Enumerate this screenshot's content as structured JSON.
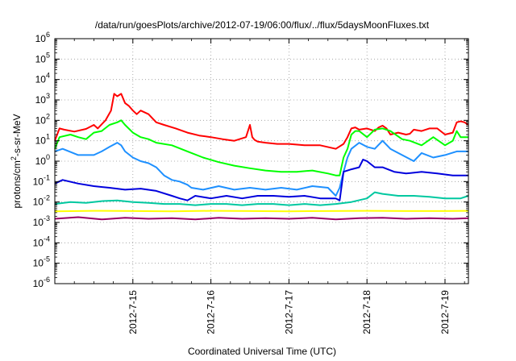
{
  "chart_data": {
    "type": "line",
    "title": "/data/run/goesPlots/archive/2012-07-19/06:00/flux/../flux/5daysMoonFluxes.txt",
    "xlabel": "Coordinated Universal Time (UTC)",
    "ylabel": {
      "base": "protons/cm",
      "sup": "2",
      "rest": "-s-sr-MeV"
    },
    "x_unit": "days since 2012-07-14 00:00 UTC",
    "xlim": [
      0.0,
      5.3
    ],
    "x_ticks": [
      {
        "value": 1,
        "label": "2012-7-15"
      },
      {
        "value": 2,
        "label": "2012-7-16"
      },
      {
        "value": 3,
        "label": "2012-7-17"
      },
      {
        "value": 4,
        "label": "2012-7-18"
      },
      {
        "value": 5,
        "label": "2012-7-19"
      }
    ],
    "y_scale": "log",
    "ylim_exp": [
      -6,
      6
    ],
    "y_tick_exponents": [
      6,
      5,
      4,
      3,
      2,
      1,
      0,
      -1,
      -2,
      -3,
      -4,
      -5,
      -6
    ],
    "grid": true,
    "series": [
      {
        "color": "#ff0000",
        "x": [
          0.0,
          0.06,
          0.12,
          0.25,
          0.4,
          0.5,
          0.55,
          0.65,
          0.72,
          0.76,
          0.8,
          0.85,
          0.9,
          0.95,
          1.0,
          1.05,
          1.1,
          1.2,
          1.3,
          1.4,
          1.55,
          1.7,
          1.85,
          2.0,
          2.15,
          2.3,
          2.45,
          2.5,
          2.53,
          2.56,
          2.6,
          2.7,
          2.85,
          3.0,
          3.2,
          3.4,
          3.6,
          3.7,
          3.75,
          3.8,
          3.85,
          3.9,
          4.0,
          4.1,
          4.15,
          4.2,
          4.25,
          4.3,
          4.4,
          4.5,
          4.55,
          4.6,
          4.7,
          4.8,
          4.9,
          5.0,
          5.1,
          5.15,
          5.2,
          5.25,
          5.3
        ],
        "y": [
          10,
          40,
          35,
          28,
          38,
          60,
          40,
          100,
          300,
          2000,
          1500,
          2000,
          700,
          500,
          300,
          200,
          300,
          200,
          80,
          60,
          40,
          25,
          18,
          15,
          12,
          10,
          15,
          60,
          15,
          11,
          9,
          8,
          7,
          7,
          6,
          6,
          4,
          7,
          15,
          40,
          45,
          35,
          40,
          30,
          45,
          55,
          40,
          20,
          25,
          20,
          22,
          35,
          30,
          40,
          40,
          20,
          25,
          80,
          90,
          80,
          60
        ]
      },
      {
        "color": "#00ff00",
        "x": [
          0.0,
          0.06,
          0.2,
          0.3,
          0.4,
          0.5,
          0.6,
          0.7,
          0.8,
          0.85,
          0.9,
          1.0,
          1.1,
          1.2,
          1.3,
          1.5,
          1.7,
          1.9,
          2.1,
          2.3,
          2.5,
          2.7,
          2.9,
          3.1,
          3.3,
          3.5,
          3.6,
          3.65,
          3.7,
          3.75,
          3.8,
          3.85,
          3.9,
          4.0,
          4.1,
          4.2,
          4.3,
          4.45,
          4.55,
          4.7,
          4.85,
          5.0,
          5.1,
          5.15,
          5.2,
          5.3
        ],
        "y": [
          4,
          15,
          20,
          15,
          12,
          25,
          30,
          60,
          80,
          100,
          60,
          25,
          15,
          12,
          8,
          6,
          3,
          1.5,
          0.9,
          0.6,
          0.45,
          0.35,
          0.3,
          0.3,
          0.35,
          0.25,
          0.2,
          0.2,
          1.5,
          4,
          20,
          30,
          30,
          15,
          35,
          40,
          30,
          12,
          10,
          6,
          15,
          6,
          10,
          30,
          15,
          15
        ]
      },
      {
        "color": "#1e90ff",
        "x": [
          0.0,
          0.1,
          0.3,
          0.5,
          0.6,
          0.7,
          0.8,
          0.85,
          0.9,
          1.0,
          1.1,
          1.2,
          1.3,
          1.4,
          1.5,
          1.6,
          1.7,
          1.75,
          1.9,
          2.1,
          2.3,
          2.5,
          2.7,
          2.9,
          3.1,
          3.3,
          3.5,
          3.6,
          3.65,
          3.7,
          3.75,
          3.8,
          3.9,
          4.0,
          4.1,
          4.2,
          4.3,
          4.45,
          4.6,
          4.7,
          4.85,
          5.0,
          5.15,
          5.3
        ],
        "y": [
          3,
          4,
          2,
          2,
          3,
          5,
          8,
          6,
          3,
          1.5,
          1,
          0.8,
          0.5,
          0.2,
          0.12,
          0.1,
          0.07,
          0.05,
          0.04,
          0.06,
          0.04,
          0.05,
          0.04,
          0.05,
          0.04,
          0.06,
          0.05,
          0.02,
          0.05,
          0.3,
          1.5,
          4,
          8,
          5,
          4,
          10,
          4,
          2,
          1,
          2.5,
          1.5,
          2,
          3,
          3
        ]
      },
      {
        "color": "#0000dd",
        "x": [
          0.0,
          0.1,
          0.3,
          0.5,
          0.7,
          0.9,
          1.1,
          1.3,
          1.5,
          1.6,
          1.7,
          1.8,
          2.0,
          2.2,
          2.4,
          2.6,
          2.8,
          3.0,
          3.2,
          3.4,
          3.6,
          3.65,
          3.7,
          3.8,
          3.9,
          3.95,
          4.0,
          4.1,
          4.2,
          4.35,
          4.5,
          4.7,
          4.9,
          5.1,
          5.3
        ],
        "y": [
          0.08,
          0.12,
          0.08,
          0.06,
          0.05,
          0.04,
          0.045,
          0.035,
          0.02,
          0.015,
          0.012,
          0.02,
          0.015,
          0.02,
          0.015,
          0.02,
          0.02,
          0.018,
          0.02,
          0.015,
          0.015,
          0.012,
          0.3,
          0.4,
          0.5,
          1.2,
          1.0,
          0.5,
          0.5,
          0.3,
          0.25,
          0.3,
          0.25,
          0.2,
          0.2
        ]
      },
      {
        "color": "#00c8a0",
        "x": [
          0.0,
          0.2,
          0.4,
          0.6,
          0.8,
          1.0,
          1.2,
          1.4,
          1.6,
          1.8,
          2.0,
          2.2,
          2.4,
          2.6,
          2.8,
          3.0,
          3.2,
          3.4,
          3.6,
          3.8,
          4.0,
          4.1,
          4.2,
          4.4,
          4.6,
          4.8,
          5.0,
          5.2,
          5.3
        ],
        "y": [
          0.008,
          0.01,
          0.009,
          0.011,
          0.012,
          0.01,
          0.009,
          0.008,
          0.008,
          0.007,
          0.008,
          0.008,
          0.007,
          0.008,
          0.008,
          0.007,
          0.008,
          0.007,
          0.008,
          0.01,
          0.015,
          0.03,
          0.025,
          0.02,
          0.02,
          0.018,
          0.015,
          0.015,
          0.02
        ]
      },
      {
        "color": "#ffff00",
        "x": [
          0.0,
          0.5,
          1.0,
          1.5,
          2.0,
          2.5,
          3.0,
          3.5,
          4.0,
          4.5,
          5.0,
          5.3
        ],
        "y": [
          0.0035,
          0.0037,
          0.0036,
          0.0035,
          0.0037,
          0.0036,
          0.0035,
          0.0036,
          0.0037,
          0.0036,
          0.0036,
          0.0037
        ]
      },
      {
        "color": "#990066",
        "x": [
          0.0,
          0.3,
          0.6,
          0.9,
          1.2,
          1.5,
          1.8,
          2.1,
          2.4,
          2.7,
          3.0,
          3.3,
          3.6,
          3.9,
          4.2,
          4.5,
          4.8,
          5.1,
          5.3
        ],
        "y": [
          0.0015,
          0.0018,
          0.0014,
          0.0017,
          0.0015,
          0.0016,
          0.0014,
          0.0017,
          0.0015,
          0.0016,
          0.0015,
          0.0017,
          0.0014,
          0.0016,
          0.0017,
          0.0015,
          0.0016,
          0.0015,
          0.0016
        ]
      }
    ]
  }
}
